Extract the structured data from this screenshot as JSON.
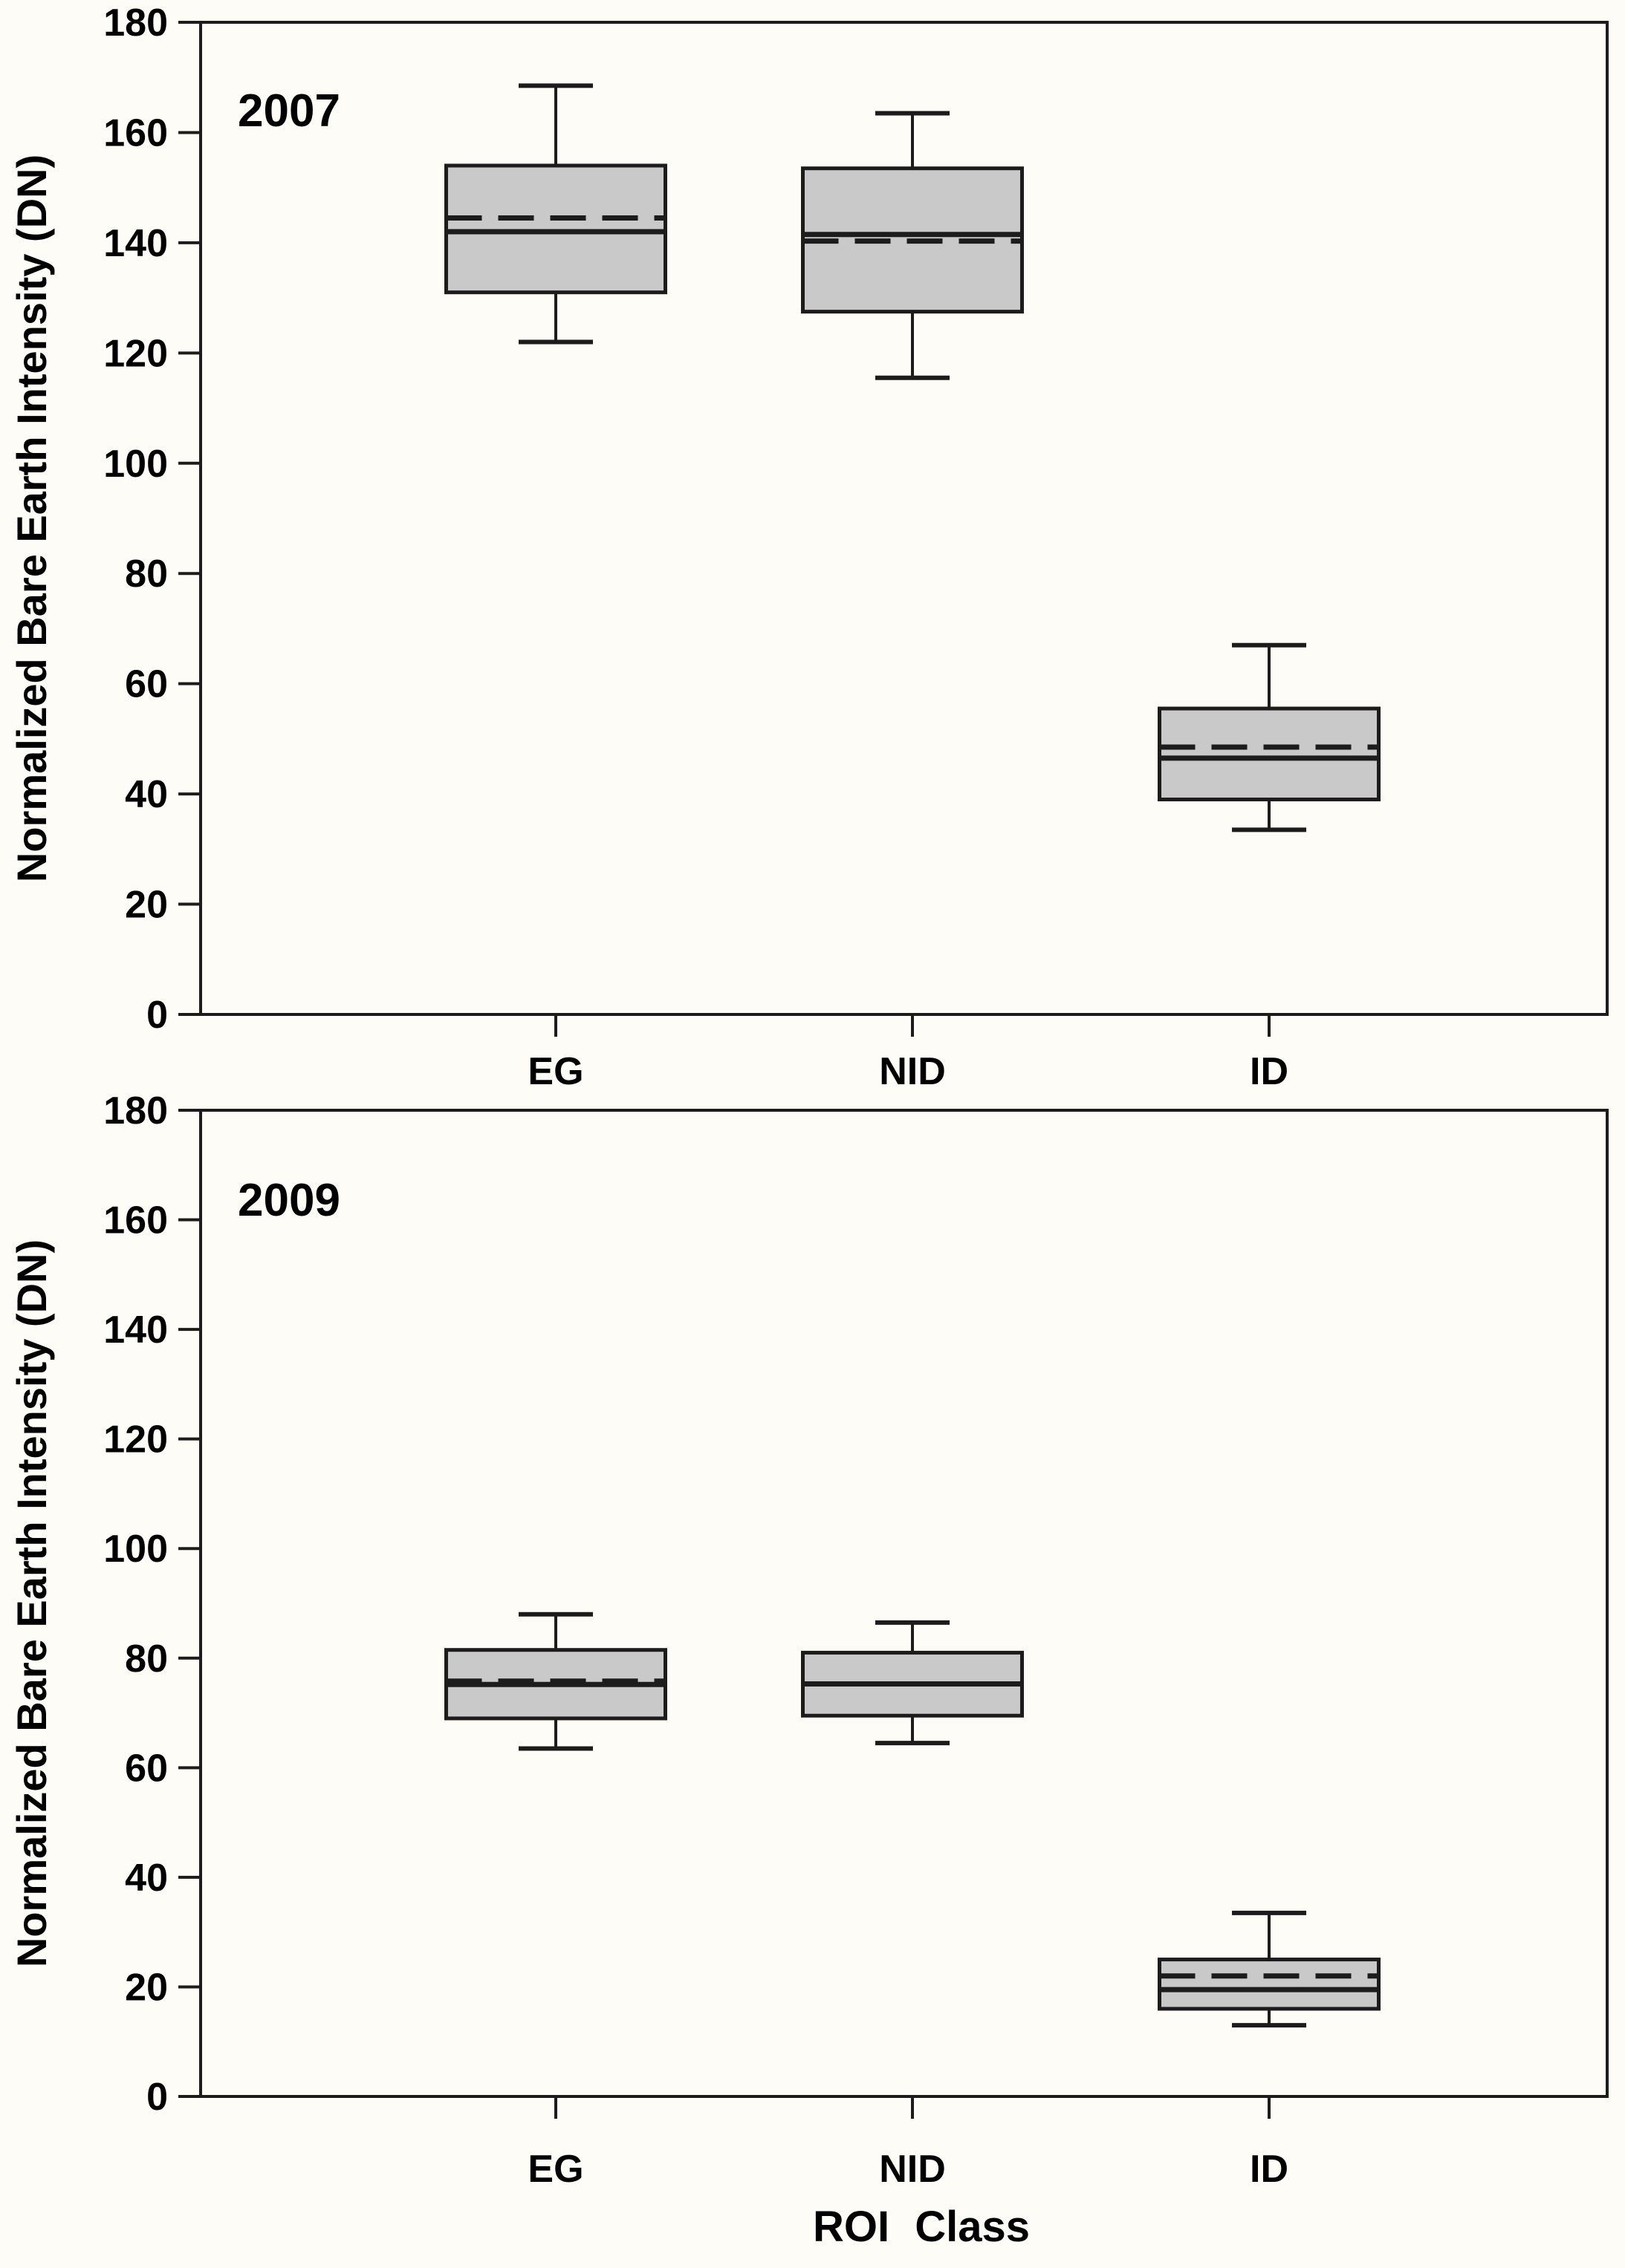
{
  "figure": {
    "x_axis_title": "ROI Class",
    "y_axis_title": "Normalized Bare Earth Intensity (DN)",
    "background_color": "#fefcf7",
    "box_fill_color": "#c9c9c9",
    "line_color": "#1c1c1c",
    "text_color": "#000000"
  },
  "chart_data": {
    "type": "boxplot",
    "categories": [
      "EG",
      "NID",
      "ID"
    ],
    "y_axis": {
      "min": 0,
      "max": 180,
      "tick_interval": 20,
      "ticks": [
        0,
        20,
        40,
        60,
        80,
        100,
        120,
        140,
        160,
        180
      ],
      "label": "Normalized Bare Earth Intensity (DN)"
    },
    "x_axis": {
      "label": "ROI Class"
    },
    "legend": "none",
    "grid": false,
    "style_notes": "two vertically stacked panels, boxed axes, gray filled boxes, solid median line, dashed mean line",
    "panels": [
      {
        "year": "2007",
        "boxes": [
          {
            "category": "EG",
            "whisker_low": 122,
            "q1": 131,
            "median": 142,
            "mean": 144.5,
            "q3": 154,
            "whisker_high": 168.5,
            "mean_dash_visible": true
          },
          {
            "category": "NID",
            "whisker_low": 115.5,
            "q1": 127.5,
            "median": 141.5,
            "mean": 140.3,
            "q3": 153.5,
            "whisker_high": 163.5,
            "mean_dash_visible": true
          },
          {
            "category": "ID",
            "whisker_low": 33.5,
            "q1": 39,
            "median": 46.5,
            "mean": 48.5,
            "q3": 55.5,
            "whisker_high": 67,
            "mean_dash_visible": true
          }
        ]
      },
      {
        "year": "2009",
        "boxes": [
          {
            "category": "EG",
            "whisker_low": 63.5,
            "q1": 69,
            "median": 75.2,
            "mean": 75.8,
            "q3": 81.5,
            "whisker_high": 88,
            "mean_dash_visible": true
          },
          {
            "category": "NID",
            "whisker_low": 64.5,
            "q1": 69.5,
            "median": 75.3,
            "mean": null,
            "q3": 81,
            "whisker_high": 86.5,
            "mean_dash_visible": false
          },
          {
            "category": "ID",
            "whisker_low": 13,
            "q1": 16,
            "median": 19.5,
            "mean": 22,
            "q3": 25,
            "whisker_high": 33.5,
            "mean_dash_visible": true
          }
        ]
      }
    ]
  }
}
